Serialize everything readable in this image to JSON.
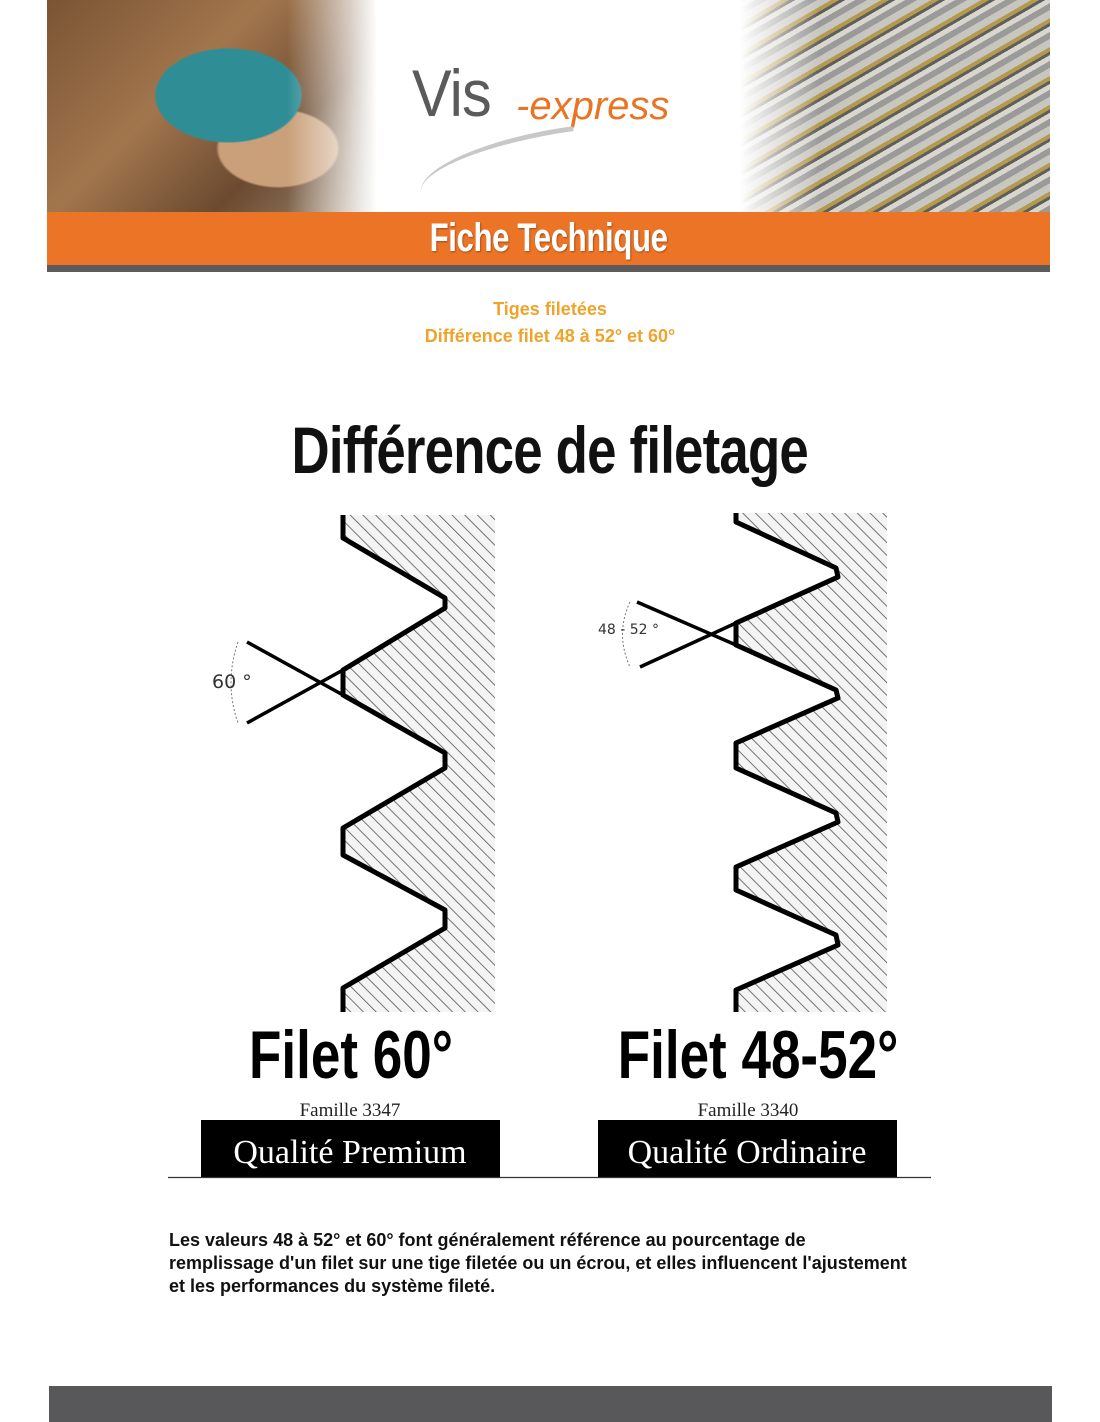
{
  "header": {
    "logo_main": "Vis",
    "logo_suffix": "-express",
    "banner_title": "Fiche Technique",
    "brand_color": "#ec7426"
  },
  "document": {
    "subtitle_line1": "Tiges filetées",
    "subtitle_line2": "Différence filet 48 à 52° et 60°",
    "accent_color": "#f0a32a",
    "diagram": {
      "title": "Différence de filetage",
      "left": {
        "angle_label": "60 °",
        "name": "Filet 60°",
        "family": "Famille 3347",
        "quality": "Qualité Premium"
      },
      "right": {
        "angle_label": "48 - 52 °",
        "name": "Filet 48-52°",
        "family": "Famille 3340",
        "quality": "Qualité Ordinaire"
      }
    },
    "paragraph": "Les valeurs 48 à 52° et 60° font généralement référence au pourcentage de remplissage d'un filet sur une tige filetée ou un écrou, et elles influencent l'ajustement et les performances du système fileté."
  }
}
